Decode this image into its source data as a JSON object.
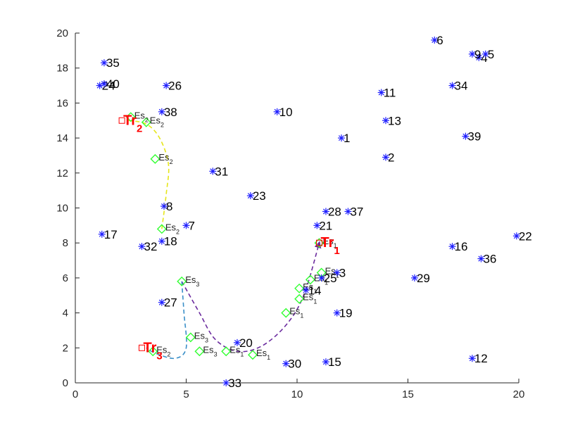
{
  "chart_data": {
    "type": "scatter",
    "title": "",
    "xlabel": "",
    "ylabel": "",
    "xlim": [
      0,
      20
    ],
    "ylim": [
      0,
      20
    ],
    "xticks": [
      0,
      5,
      10,
      15,
      20
    ],
    "yticks": [
      0,
      2,
      4,
      6,
      8,
      10,
      12,
      14,
      16,
      18,
      20
    ],
    "grid": false,
    "colors": {
      "node": "#1f1fff",
      "es": "#33ff33",
      "tr": "#ff0000",
      "path_tr1": "#6a2a9e",
      "path_tr2": "#e6e61a",
      "path_tr3": "#3a8fc8"
    },
    "nodes": [
      {
        "label": "1",
        "x": 12.0,
        "y": 14.0
      },
      {
        "label": "2",
        "x": 14.0,
        "y": 12.9
      },
      {
        "label": "3",
        "x": 11.8,
        "y": 6.3
      },
      {
        "label": "4",
        "x": 18.2,
        "y": 18.6
      },
      {
        "label": "5",
        "x": 18.5,
        "y": 18.8
      },
      {
        "label": "6",
        "x": 16.2,
        "y": 19.6
      },
      {
        "label": "7",
        "x": 5.0,
        "y": 9.0
      },
      {
        "label": "8",
        "x": 4.0,
        "y": 10.1
      },
      {
        "label": "9",
        "x": 17.9,
        "y": 18.8
      },
      {
        "label": "10",
        "x": 9.1,
        "y": 15.5
      },
      {
        "label": "11",
        "x": 13.8,
        "y": 16.6
      },
      {
        "label": "12",
        "x": 17.9,
        "y": 1.4
      },
      {
        "label": "13",
        "x": 14.0,
        "y": 15.0
      },
      {
        "label": "14",
        "x": 10.4,
        "y": 5.3
      },
      {
        "label": "15",
        "x": 11.3,
        "y": 1.2
      },
      {
        "label": "16",
        "x": 17.0,
        "y": 7.8
      },
      {
        "label": "17",
        "x": 1.2,
        "y": 8.5
      },
      {
        "label": "18",
        "x": 3.9,
        "y": 8.1
      },
      {
        "label": "19",
        "x": 11.8,
        "y": 4.0
      },
      {
        "label": "20",
        "x": 7.3,
        "y": 2.3
      },
      {
        "label": "21",
        "x": 10.9,
        "y": 9.0
      },
      {
        "label": "22",
        "x": 19.9,
        "y": 8.4
      },
      {
        "label": "23",
        "x": 7.9,
        "y": 10.7
      },
      {
        "label": "24",
        "x": 1.1,
        "y": 17.0
      },
      {
        "label": "25",
        "x": 11.1,
        "y": 6.0
      },
      {
        "label": "26",
        "x": 4.1,
        "y": 17.0
      },
      {
        "label": "27",
        "x": 3.9,
        "y": 4.6
      },
      {
        "label": "28",
        "x": 11.3,
        "y": 9.8
      },
      {
        "label": "29",
        "x": 15.3,
        "y": 6.0
      },
      {
        "label": "30",
        "x": 9.5,
        "y": 1.1
      },
      {
        "label": "31",
        "x": 6.2,
        "y": 12.1
      },
      {
        "label": "32",
        "x": 3.0,
        "y": 7.8
      },
      {
        "label": "33",
        "x": 6.8,
        "y": 0.0
      },
      {
        "label": "34",
        "x": 17.0,
        "y": 17.0
      },
      {
        "label": "35",
        "x": 1.3,
        "y": 18.3
      },
      {
        "label": "36",
        "x": 18.3,
        "y": 7.1
      },
      {
        "label": "37",
        "x": 12.3,
        "y": 9.8
      },
      {
        "label": "38",
        "x": 3.9,
        "y": 15.5
      },
      {
        "label": "39",
        "x": 17.6,
        "y": 14.1
      },
      {
        "label": "40",
        "x": 1.3,
        "y": 17.1
      }
    ],
    "sensors": [
      {
        "label": "Es",
        "sub": "1",
        "x": 11.0,
        "y": 8.0
      },
      {
        "label": "Es",
        "sub": "1",
        "x": 11.1,
        "y": 6.3
      },
      {
        "label": "Es",
        "sub": "1",
        "x": 10.6,
        "y": 5.9
      },
      {
        "label": "Es",
        "sub": "1",
        "x": 10.1,
        "y": 5.4
      },
      {
        "label": "Es",
        "sub": "1",
        "x": 10.1,
        "y": 4.8
      },
      {
        "label": "Es",
        "sub": "1",
        "x": 9.5,
        "y": 4.0
      },
      {
        "label": "Es",
        "sub": "1",
        "x": 8.0,
        "y": 1.6
      },
      {
        "label": "Es",
        "sub": "1",
        "x": 6.8,
        "y": 1.8
      },
      {
        "label": "Es",
        "sub": "3",
        "x": 5.6,
        "y": 1.8
      },
      {
        "label": "Es",
        "sub": "3",
        "x": 5.2,
        "y": 2.6
      },
      {
        "label": "Es",
        "sub": "3",
        "x": 4.8,
        "y": 5.8
      },
      {
        "label": "Es",
        "sub": "2",
        "x": 3.5,
        "y": 1.8
      },
      {
        "label": "Es",
        "sub": "2",
        "x": 3.9,
        "y": 8.8
      },
      {
        "label": "Es",
        "sub": "2",
        "x": 3.6,
        "y": 12.8
      },
      {
        "label": "Es",
        "sub": "2",
        "x": 3.2,
        "y": 14.9
      },
      {
        "label": "Es",
        "sub": "2",
        "x": 2.5,
        "y": 15.2
      }
    ],
    "targets": [
      {
        "label": "Tr",
        "sub": "1",
        "x": 11.0,
        "y": 8.0
      },
      {
        "label": "Tr",
        "sub": "2",
        "x": 2.1,
        "y": 15.0
      },
      {
        "label": "Tr",
        "sub": "3",
        "x": 3.0,
        "y": 2.0
      }
    ],
    "paths": [
      {
        "target": "Tr1",
        "points": [
          [
            4.8,
            5.8
          ],
          [
            5.6,
            4.0
          ],
          [
            6.3,
            2.5
          ],
          [
            7.3,
            1.8
          ],
          [
            8.4,
            2.1
          ],
          [
            9.5,
            3.3
          ],
          [
            10.3,
            5.0
          ],
          [
            11.0,
            8.0
          ]
        ]
      },
      {
        "target": "Tr2",
        "points": [
          [
            3.9,
            8.8
          ],
          [
            4.1,
            10.8
          ],
          [
            4.2,
            12.5
          ],
          [
            3.8,
            14.0
          ],
          [
            3.2,
            14.8
          ],
          [
            2.4,
            15.0
          ]
        ]
      },
      {
        "target": "Tr3",
        "points": [
          [
            4.8,
            5.8
          ],
          [
            4.9,
            4.0
          ],
          [
            5.0,
            2.0
          ],
          [
            4.5,
            1.4
          ],
          [
            3.6,
            1.7
          ],
          [
            3.2,
            2.0
          ]
        ]
      }
    ]
  }
}
